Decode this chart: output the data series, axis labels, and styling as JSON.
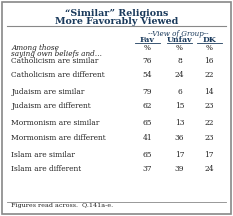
{
  "title_line1": "“Similar” Religions",
  "title_line2": "More Favorably Viewed",
  "header_group": "--View of Group--",
  "col_headers": [
    "Fav",
    "Unfav",
    "DK"
  ],
  "row_label_italic_header1": "Among those",
  "row_label_italic_header2": "saying own beliefs and…",
  "rows": [
    {
      "label": "Catholicism are similar",
      "fav": 76,
      "unfav": 8,
      "dk": 16
    },
    {
      "label": "Catholicism are different",
      "fav": 54,
      "unfav": 24,
      "dk": 22
    },
    {
      "label": "Judaism are similar",
      "fav": 79,
      "unfav": 6,
      "dk": 14
    },
    {
      "label": "Judaism are different",
      "fav": 62,
      "unfav": 15,
      "dk": 23
    },
    {
      "label": "Mormonism are similar",
      "fav": 65,
      "unfav": 13,
      "dk": 22
    },
    {
      "label": "Mormonism are different",
      "fav": 41,
      "unfav": 36,
      "dk": 23
    },
    {
      "label": "Islam are similar",
      "fav": 65,
      "unfav": 17,
      "dk": 17
    },
    {
      "label": "Islam are different",
      "fav": 37,
      "unfav": 39,
      "dk": 24
    }
  ],
  "footnote": "Figures read across.  Q.141a-e.",
  "bg_color": "#ffffff",
  "border_color": "#888888",
  "title_color": "#1a3a5c",
  "text_color": "#222222",
  "header_color": "#1a3a5c"
}
